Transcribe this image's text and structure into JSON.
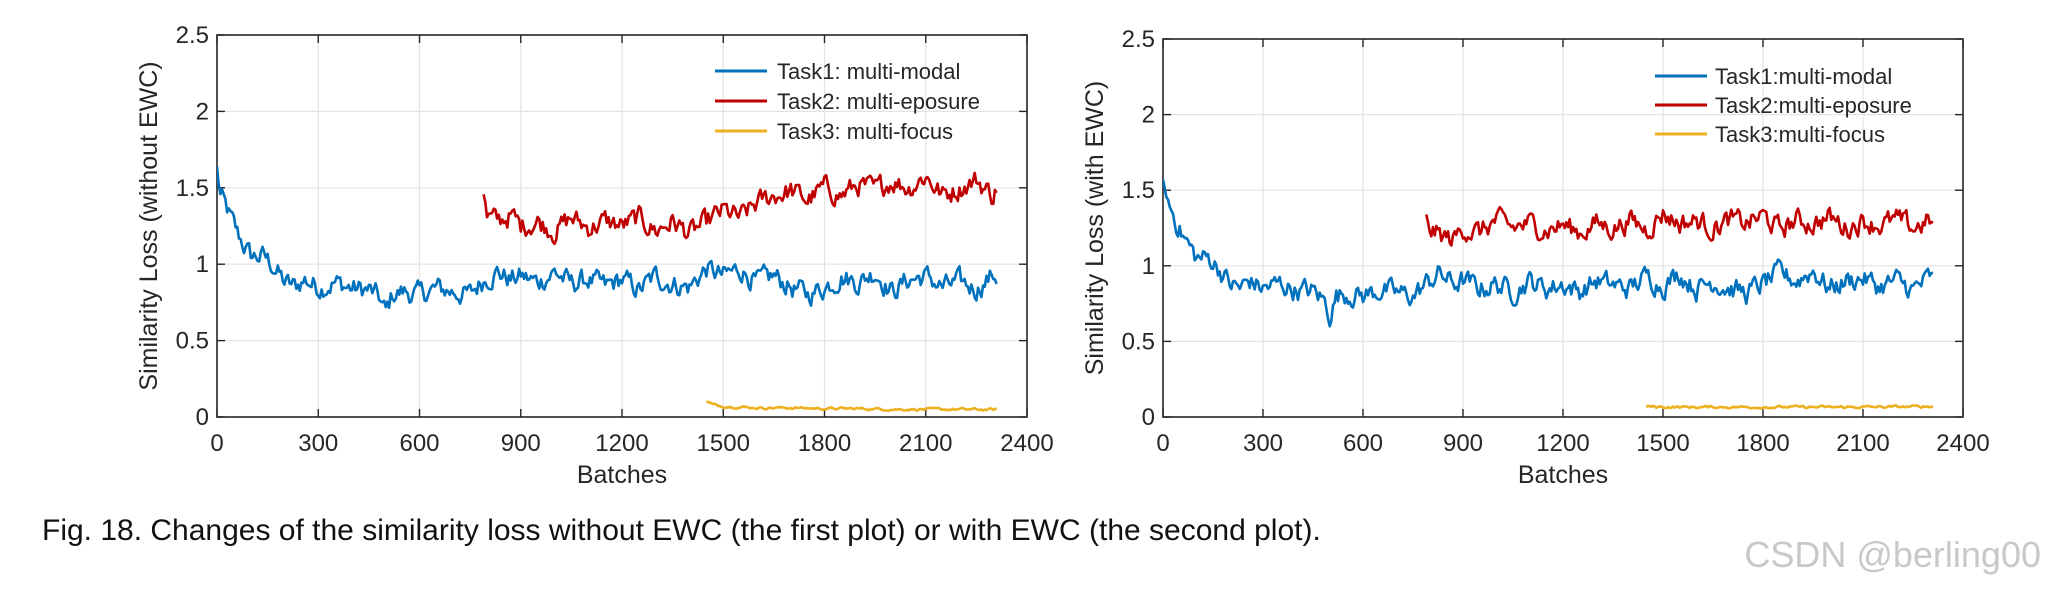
{
  "chart_data": [
    {
      "type": "line",
      "xlabel": "Batches",
      "ylabel": "Similarity Loss (without EWC)",
      "xlim": [
        0,
        2400
      ],
      "ylim": [
        0,
        2.5
      ],
      "xticks": [
        0,
        300,
        600,
        900,
        1200,
        1500,
        1800,
        2100,
        2400
      ],
      "yticks": [
        0,
        0.5,
        1,
        1.5,
        2,
        2.5
      ],
      "ytick_labels": [
        "0",
        "0.5",
        "1",
        "1.5",
        "2",
        "2.5"
      ],
      "grid": true,
      "legend_position": "top-right",
      "series": [
        {
          "name": "Task1: multi-modal",
          "color": "#0072BD",
          "x": [
            0,
            10,
            30,
            60,
            100,
            140,
            170,
            200,
            230,
            260,
            300,
            350,
            400,
            450,
            480,
            500,
            520,
            550,
            600,
            650,
            700,
            750,
            790,
            830,
            870,
            900,
            950,
            1000,
            1050,
            1100,
            1150,
            1200,
            1250,
            1300,
            1350,
            1400,
            1450,
            1500,
            1550,
            1600,
            1650,
            1700,
            1750,
            1800,
            1850,
            1900,
            1950,
            2000,
            2050,
            2100,
            2150,
            2200,
            2250,
            2300,
            2310
          ],
          "y": [
            1.62,
            1.45,
            1.35,
            1.2,
            1.05,
            1.05,
            0.98,
            0.88,
            0.85,
            0.9,
            0.85,
            0.88,
            0.84,
            0.83,
            0.78,
            0.68,
            0.8,
            0.82,
            0.8,
            0.84,
            0.82,
            0.8,
            0.9,
            0.95,
            0.9,
            0.92,
            0.88,
            0.95,
            0.87,
            0.9,
            0.85,
            0.9,
            0.83,
            0.92,
            0.87,
            0.85,
            0.97,
            0.92,
            0.97,
            0.88,
            0.92,
            0.85,
            0.8,
            0.85,
            0.92,
            0.88,
            0.95,
            0.82,
            0.9,
            0.92,
            0.85,
            0.88,
            0.84,
            0.93,
            0.92
          ]
        },
        {
          "name": "Task2: multi-eposure",
          "color": "#C00000",
          "x": [
            790,
            800,
            830,
            870,
            900,
            950,
            1000,
            1050,
            1100,
            1150,
            1200,
            1250,
            1300,
            1350,
            1400,
            1450,
            1500,
            1550,
            1600,
            1650,
            1700,
            1750,
            1800,
            1850,
            1900,
            1950,
            2000,
            2050,
            2100,
            2150,
            2200,
            2250,
            2300,
            2310
          ],
          "y": [
            1.47,
            1.3,
            1.28,
            1.32,
            1.25,
            1.28,
            1.22,
            1.3,
            1.24,
            1.28,
            1.25,
            1.3,
            1.22,
            1.28,
            1.2,
            1.27,
            1.35,
            1.3,
            1.4,
            1.45,
            1.48,
            1.42,
            1.5,
            1.45,
            1.52,
            1.48,
            1.55,
            1.5,
            1.58,
            1.45,
            1.5,
            1.55,
            1.45,
            1.5
          ]
        },
        {
          "name": "Task3: multi-focus",
          "color": "#EDB120",
          "x": [
            1450,
            1470,
            1500,
            1600,
            1700,
            1800,
            1900,
            2000,
            2100,
            2200,
            2300,
            2310
          ],
          "y": [
            0.1,
            0.08,
            0.07,
            0.06,
            0.06,
            0.055,
            0.055,
            0.05,
            0.05,
            0.05,
            0.048,
            0.05
          ]
        }
      ]
    },
    {
      "type": "line",
      "xlabel": "Batches",
      "ylabel": "Similarity Loss (with EWC)",
      "xlim": [
        0,
        2400
      ],
      "ylim": [
        0,
        2.5
      ],
      "xticks": [
        0,
        300,
        600,
        900,
        1200,
        1500,
        1800,
        2100,
        2400
      ],
      "yticks": [
        0,
        0.5,
        1,
        1.5,
        2,
        2.5
      ],
      "ytick_labels": [
        "0",
        "0.5",
        "1",
        "1.5",
        "2",
        "2.5"
      ],
      "grid": true,
      "legend_position": "top-right",
      "series": [
        {
          "name": "Task1:multi-modal",
          "color": "#0072BD",
          "x": [
            0,
            10,
            30,
            60,
            100,
            140,
            170,
            200,
            230,
            260,
            300,
            350,
            400,
            450,
            480,
            500,
            520,
            550,
            600,
            650,
            700,
            750,
            790,
            830,
            870,
            900,
            950,
            1000,
            1050,
            1100,
            1150,
            1200,
            1250,
            1300,
            1350,
            1400,
            1450,
            1500,
            1550,
            1600,
            1650,
            1700,
            1750,
            1800,
            1850,
            1900,
            1950,
            2000,
            2050,
            2100,
            2150,
            2200,
            2250,
            2300,
            2310
          ],
          "y": [
            1.62,
            1.45,
            1.35,
            1.2,
            1.05,
            1.05,
            0.98,
            0.88,
            0.85,
            0.9,
            0.85,
            0.88,
            0.84,
            0.83,
            0.78,
            0.68,
            0.8,
            0.82,
            0.8,
            0.84,
            0.82,
            0.8,
            0.88,
            0.95,
            0.88,
            0.9,
            0.85,
            0.88,
            0.83,
            0.9,
            0.85,
            0.88,
            0.83,
            0.9,
            0.87,
            0.85,
            0.93,
            0.87,
            0.95,
            0.85,
            0.9,
            0.85,
            0.82,
            0.88,
            0.95,
            0.9,
            0.97,
            0.85,
            0.9,
            0.92,
            0.86,
            0.9,
            0.84,
            0.92,
            0.9
          ]
        },
        {
          "name": "Task2:multi-eposure",
          "color": "#C00000",
          "x": [
            790,
            800,
            830,
            870,
            900,
            950,
            1000,
            1050,
            1100,
            1150,
            1200,
            1250,
            1300,
            1350,
            1400,
            1450,
            1500,
            1550,
            1600,
            1650,
            1700,
            1750,
            1800,
            1850,
            1900,
            1950,
            2000,
            2050,
            2100,
            2150,
            2200,
            2250,
            2300,
            2310
          ],
          "y": [
            1.3,
            1.25,
            1.2,
            1.17,
            1.25,
            1.22,
            1.3,
            1.25,
            1.28,
            1.24,
            1.27,
            1.22,
            1.28,
            1.25,
            1.3,
            1.24,
            1.35,
            1.28,
            1.3,
            1.25,
            1.3,
            1.28,
            1.33,
            1.24,
            1.3,
            1.28,
            1.32,
            1.25,
            1.3,
            1.27,
            1.3,
            1.25,
            1.3,
            1.25
          ]
        },
        {
          "name": "Task3:multi-focus",
          "color": "#EDB120",
          "x": [
            1450,
            1470,
            1500,
            1600,
            1700,
            1800,
            1900,
            2000,
            2100,
            2200,
            2300,
            2310
          ],
          "y": [
            0.07,
            0.068,
            0.066,
            0.065,
            0.066,
            0.065,
            0.066,
            0.065,
            0.066,
            0.067,
            0.07,
            0.068
          ]
        }
      ]
    }
  ],
  "caption": "Fig. 18. Changes of the similarity loss without EWC (the first plot) or with EWC (the second plot).",
  "watermark": "CSDN @berling00"
}
